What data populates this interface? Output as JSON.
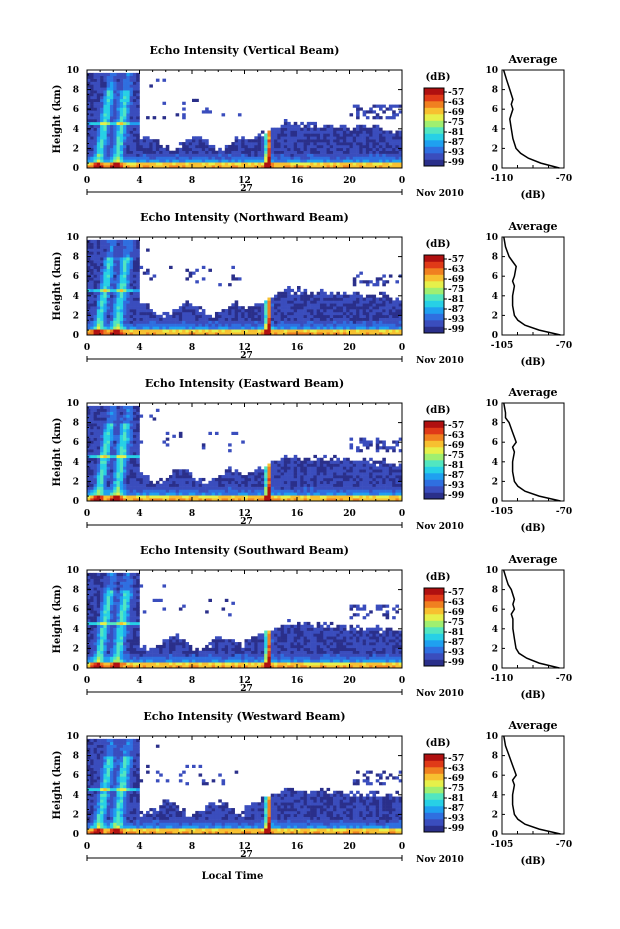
{
  "colors": {
    "background": "#ffffff",
    "colormap": [
      "#2a2f8a",
      "#3a4dbd",
      "#2f6fe0",
      "#1fa0f0",
      "#27d0e6",
      "#52e6c0",
      "#a0ef70",
      "#e6f04a",
      "#f7c030",
      "#f08020",
      "#e03a18",
      "#b01010"
    ]
  },
  "shared": {
    "time_ticks": [
      "0",
      "4",
      "8",
      "12",
      "16",
      "20",
      "0"
    ],
    "height_ticks": [
      "0",
      "2",
      "4",
      "6",
      "8",
      "10"
    ],
    "day_label": "27",
    "month_label": "Nov 2010",
    "colorbar_unit": "(dB)",
    "colorbar_ticks": [
      "-57",
      "-63",
      "-69",
      "-75",
      "-81",
      "-87",
      "-93",
      "-99"
    ],
    "ylabel": "Height (km)",
    "avg_title": "Average",
    "avg_xlabel": "(dB)",
    "xlabel": "Local Time"
  },
  "chart_data": [
    {
      "type": "heatmap",
      "title": "Echo Intensity (Vertical Beam)",
      "x_range_hours": [
        0,
        24
      ],
      "y_range_km": [
        0,
        10
      ],
      "color_range_db": [
        -99,
        -57
      ],
      "avg_xticks": [
        "-110",
        "-70"
      ],
      "avg_xlim": [
        -110,
        -70
      ],
      "average_profile": [
        [
          0.0,
          -73
        ],
        [
          0.5,
          -85
        ],
        [
          1.0,
          -93
        ],
        [
          1.5,
          -98
        ],
        [
          2.0,
          -101
        ],
        [
          3.0,
          -103
        ],
        [
          4.0,
          -104
        ],
        [
          5.0,
          -105
        ],
        [
          5.5,
          -104
        ],
        [
          6.0,
          -103
        ],
        [
          6.5,
          -104
        ],
        [
          7.0,
          -103
        ],
        [
          8.0,
          -105
        ],
        [
          8.5,
          -106
        ],
        [
          9.0,
          -107
        ],
        [
          9.5,
          -108
        ],
        [
          10.0,
          -109
        ]
      ]
    },
    {
      "type": "heatmap",
      "title": "Echo Intensity (Northward Beam)",
      "x_range_hours": [
        0,
        24
      ],
      "y_range_km": [
        0,
        10
      ],
      "color_range_db": [
        -99,
        -57
      ],
      "avg_xticks": [
        "-105",
        "-70"
      ],
      "avg_xlim": [
        -105,
        -70
      ],
      "average_profile": [
        [
          0.0,
          -72
        ],
        [
          0.5,
          -84
        ],
        [
          1.0,
          -92
        ],
        [
          1.5,
          -96
        ],
        [
          2.0,
          -98
        ],
        [
          3.0,
          -99
        ],
        [
          4.0,
          -99
        ],
        [
          5.0,
          -98
        ],
        [
          5.5,
          -99
        ],
        [
          6.0,
          -98
        ],
        [
          7.0,
          -97
        ],
        [
          7.5,
          -99
        ],
        [
          8.0,
          -101
        ],
        [
          8.5,
          -102
        ],
        [
          9.0,
          -103
        ],
        [
          10.0,
          -104
        ]
      ]
    },
    {
      "type": "heatmap",
      "title": "Echo Intensity (Eastward Beam)",
      "x_range_hours": [
        0,
        24
      ],
      "y_range_km": [
        0,
        10
      ],
      "color_range_db": [
        -99,
        -57
      ],
      "avg_xticks": [
        "-105",
        "-70"
      ],
      "avg_xlim": [
        -105,
        -70
      ],
      "average_profile": [
        [
          0.0,
          -72
        ],
        [
          0.5,
          -84
        ],
        [
          1.0,
          -92
        ],
        [
          1.5,
          -96
        ],
        [
          2.0,
          -98
        ],
        [
          3.0,
          -99
        ],
        [
          4.0,
          -99
        ],
        [
          5.0,
          -98
        ],
        [
          5.5,
          -99
        ],
        [
          6.0,
          -97
        ],
        [
          6.5,
          -98
        ],
        [
          7.0,
          -99
        ],
        [
          8.0,
          -101
        ],
        [
          8.5,
          -103
        ],
        [
          9.0,
          -103
        ],
        [
          10.0,
          -104
        ]
      ]
    },
    {
      "type": "heatmap",
      "title": "Echo Intensity (Southward Beam)",
      "x_range_hours": [
        0,
        24
      ],
      "y_range_km": [
        0,
        10
      ],
      "color_range_db": [
        -99,
        -57
      ],
      "avg_xticks": [
        "-110",
        "-70"
      ],
      "avg_xlim": [
        -110,
        -70
      ],
      "average_profile": [
        [
          0.0,
          -73
        ],
        [
          0.5,
          -86
        ],
        [
          1.0,
          -94
        ],
        [
          1.5,
          -99
        ],
        [
          2.0,
          -101
        ],
        [
          3.0,
          -102
        ],
        [
          4.0,
          -103
        ],
        [
          5.0,
          -103
        ],
        [
          5.5,
          -104
        ],
        [
          6.0,
          -102
        ],
        [
          6.5,
          -103
        ],
        [
          7.0,
          -102
        ],
        [
          8.0,
          -104
        ],
        [
          8.5,
          -106
        ],
        [
          9.0,
          -107
        ],
        [
          9.5,
          -108
        ],
        [
          10.0,
          -109
        ]
      ]
    },
    {
      "type": "heatmap",
      "title": "Echo Intensity (Westward Beam)",
      "x_range_hours": [
        0,
        24
      ],
      "y_range_km": [
        0,
        10
      ],
      "color_range_db": [
        -99,
        -57
      ],
      "avg_xticks": [
        "-105",
        "-70"
      ],
      "avg_xlim": [
        -105,
        -70
      ],
      "average_profile": [
        [
          0.0,
          -72
        ],
        [
          0.5,
          -84
        ],
        [
          1.0,
          -92
        ],
        [
          1.5,
          -96
        ],
        [
          2.0,
          -98
        ],
        [
          3.0,
          -99
        ],
        [
          4.0,
          -99
        ],
        [
          5.0,
          -98
        ],
        [
          5.5,
          -99
        ],
        [
          6.0,
          -97
        ],
        [
          6.5,
          -98
        ],
        [
          7.0,
          -99
        ],
        [
          8.0,
          -101
        ],
        [
          8.5,
          -102
        ],
        [
          9.0,
          -103
        ],
        [
          10.0,
          -104
        ]
      ]
    }
  ]
}
